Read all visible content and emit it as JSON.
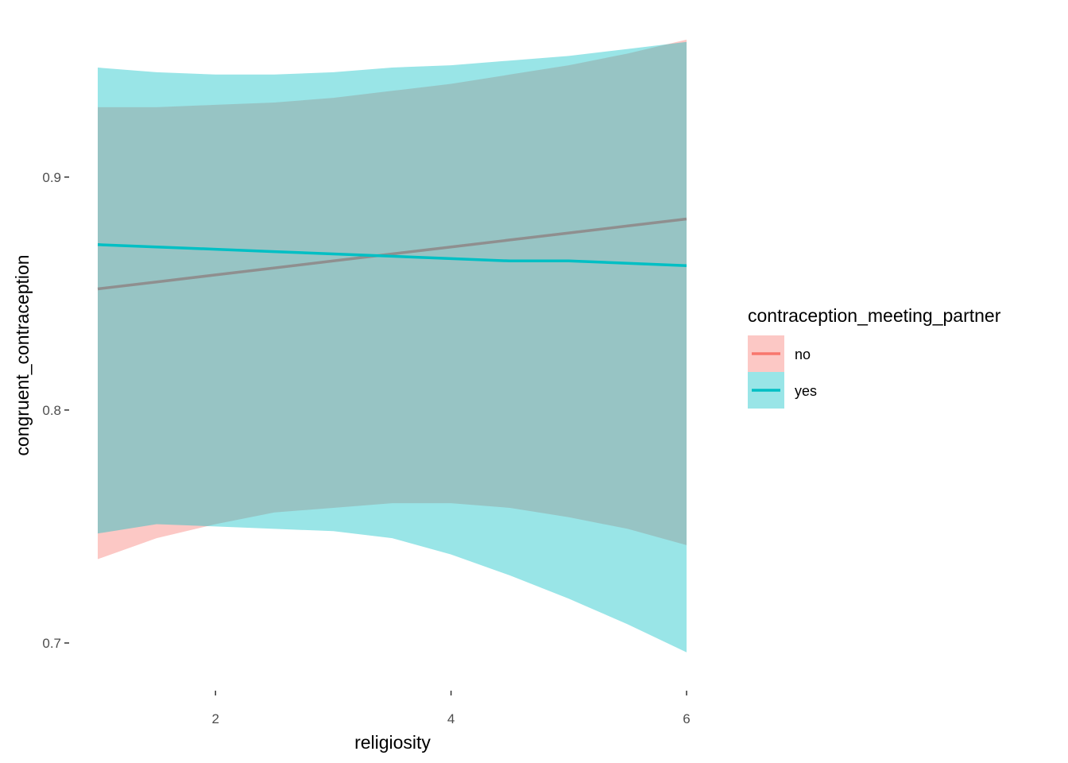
{
  "chart_data": {
    "type": "line",
    "xlabel": "religiosity",
    "ylabel": "congruent_contraception",
    "xlim": [
      1,
      6
    ],
    "ylim": [
      0.686,
      0.961
    ],
    "x_ticks": [
      2,
      4,
      6
    ],
    "x_tick_labels": [
      "2",
      "4",
      "6"
    ],
    "y_ticks": [
      0.7,
      0.8,
      0.9
    ],
    "y_tick_labels": [
      "0.7 -",
      "0.8 -",
      "0.9 -"
    ],
    "grid": false,
    "legend": {
      "title": "contraception_meeting_partner",
      "placement": "right",
      "entries": [
        {
          "label": "no",
          "color": "#F8766D",
          "fill": "#F8766D"
        },
        {
          "label": "yes",
          "color": "#00BFC4",
          "fill": "#00BFC4"
        }
      ]
    },
    "series": [
      {
        "name": "no",
        "color": "#F8766D",
        "x": [
          1.0,
          1.5,
          2.0,
          2.5,
          3.0,
          3.5,
          4.0,
          4.5,
          5.0,
          5.5,
          6.0
        ],
        "y": [
          0.852,
          0.855,
          0.858,
          0.861,
          0.864,
          0.867,
          0.87,
          0.873,
          0.876,
          0.879,
          0.882
        ],
        "lower": [
          0.736,
          0.745,
          0.751,
          0.756,
          0.758,
          0.76,
          0.76,
          0.758,
          0.754,
          0.749,
          0.742
        ],
        "upper": [
          0.93,
          0.93,
          0.931,
          0.932,
          0.934,
          0.937,
          0.94,
          0.944,
          0.948,
          0.953,
          0.959
        ]
      },
      {
        "name": "yes",
        "color": "#00BFC4",
        "x": [
          1.0,
          1.5,
          2.0,
          2.5,
          3.0,
          3.5,
          4.0,
          4.5,
          5.0,
          5.5,
          6.0
        ],
        "y": [
          0.871,
          0.87,
          0.869,
          0.868,
          0.867,
          0.866,
          0.865,
          0.864,
          0.864,
          0.863,
          0.862
        ],
        "lower": [
          0.747,
          0.751,
          0.75,
          0.749,
          0.748,
          0.745,
          0.738,
          0.729,
          0.719,
          0.708,
          0.696
        ],
        "upper": [
          0.947,
          0.945,
          0.944,
          0.944,
          0.945,
          0.947,
          0.948,
          0.95,
          0.952,
          0.955,
          0.958
        ]
      }
    ]
  }
}
